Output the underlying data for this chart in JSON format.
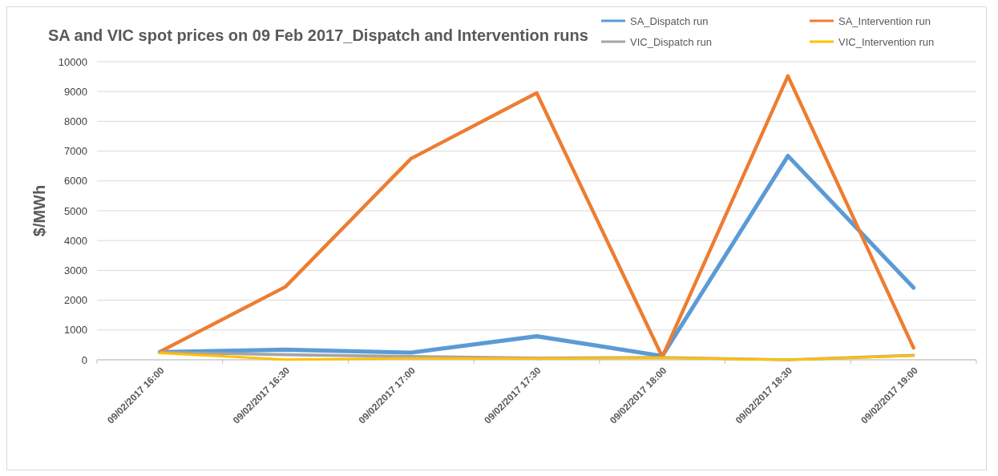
{
  "chart_data": {
    "type": "line",
    "title": "SA and VIC spot prices on 09 Feb 2017_Dispatch and Intervention runs",
    "ylabel": "$/MWh",
    "categories": [
      "09/02/2017 16:00",
      "09/02/2017 16:30",
      "09/02/2017 17:00",
      "09/02/2017 17:30",
      "09/02/2017 18:00",
      "09/02/2017 18:30",
      "09/02/2017 19:00"
    ],
    "series": [
      {
        "name": "SA_Dispatch run",
        "color": "#5b9bd5",
        "values": [
          260,
          340,
          240,
          790,
          130,
          6840,
          2420
        ]
      },
      {
        "name": "SA_Intervention run",
        "color": "#ed7d31",
        "values": [
          270,
          2450,
          6750,
          8950,
          100,
          9520,
          400
        ]
      },
      {
        "name": "VIC_Dispatch run",
        "color": "#a5a5a5",
        "values": [
          250,
          170,
          110,
          60,
          80,
          0,
          150
        ]
      },
      {
        "name": "VIC_Intervention run",
        "color": "#ffc000",
        "values": [
          230,
          10,
          50,
          40,
          70,
          0,
          140
        ]
      }
    ],
    "ylim": [
      0,
      10000
    ],
    "yticks": [
      0,
      1000,
      2000,
      3000,
      4000,
      5000,
      6000,
      7000,
      8000,
      9000,
      10000
    ],
    "grid": "y",
    "legend": "top right",
    "marker": "none",
    "line_style": "solid"
  }
}
